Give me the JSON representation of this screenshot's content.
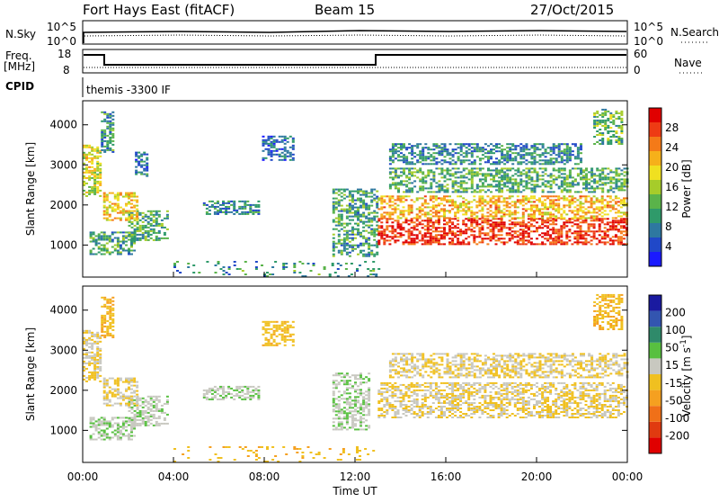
{
  "header": {
    "station": "Fort Hays East (fitACF)",
    "beam": "Beam 15",
    "date": "27/Oct/2015"
  },
  "top_panels": {
    "nsky_label": "N.Sky",
    "nsky_ticks": [
      "10^5",
      "10^0"
    ],
    "nsearch_label": "N.Search",
    "nsearch_ticks": [
      "10^5",
      "10^0"
    ],
    "freq_label_1": "Freq.",
    "freq_label_2": "[MHz]",
    "freq_ticks": [
      "18",
      "8"
    ],
    "nave_label": "Nave",
    "nave_ticks": [
      "60",
      "0"
    ],
    "cpid_label": "CPID",
    "cpid_text": "themis -3300 IF"
  },
  "colorbars": {
    "power": {
      "label": "Power [dB]",
      "ticks": [
        "28",
        "24",
        "20",
        "16",
        "12",
        "8",
        "4"
      ],
      "colors": [
        "#1a1aff",
        "#2048c8",
        "#2e78a0",
        "#2f9a6a",
        "#5ab34a",
        "#a6cc2a",
        "#f0e020",
        "#f6b01a",
        "#f47a18",
        "#ee3b14",
        "#e00000"
      ]
    },
    "velocity": {
      "label_main": "Velocity [m s",
      "label_sup": "-1",
      "label_end": "]",
      "ticks": [
        "200",
        "100",
        "50",
        "15",
        "-15",
        "-50",
        "-100",
        "-200"
      ],
      "colors": [
        "#1a1aa0",
        "#3355b0",
        "#2f8a6a",
        "#58c040",
        "#c8c8c0",
        "#f0c020",
        "#f5a020",
        "#f07018",
        "#e03a10",
        "#e00000"
      ]
    }
  },
  "chart_data": [
    {
      "type": "heatmap",
      "name": "Power",
      "ylabel": "Slant Range [km]",
      "yticks": [
        1000,
        2000,
        3000,
        4000
      ],
      "ylim": [
        200,
        4600
      ],
      "xlim_hours": [
        0,
        24
      ],
      "value_unit": "dB",
      "value_range": [
        0,
        30
      ],
      "regions": [
        {
          "t0": 0.3,
          "t1": 2.3,
          "r0": 750,
          "r1": 1300,
          "v": 10
        },
        {
          "t0": 2.0,
          "t1": 3.8,
          "r0": 1100,
          "r1": 1850,
          "v": 11
        },
        {
          "t0": 0.9,
          "t1": 2.4,
          "r0": 1600,
          "r1": 2300,
          "v": 19
        },
        {
          "t0": 0.0,
          "t1": 0.8,
          "r0": 2200,
          "r1": 3500,
          "v": 17
        },
        {
          "t0": 0.8,
          "t1": 1.4,
          "r0": 3300,
          "r1": 4300,
          "v": 9
        },
        {
          "t0": 2.3,
          "t1": 2.8,
          "r0": 2700,
          "r1": 3300,
          "v": 7
        },
        {
          "t0": 5.3,
          "t1": 7.8,
          "r0": 1750,
          "r1": 2100,
          "v": 8
        },
        {
          "t0": 7.9,
          "t1": 9.3,
          "r0": 3100,
          "r1": 3700,
          "v": 6
        },
        {
          "t0": 11.0,
          "t1": 13.0,
          "r0": 700,
          "r1": 2400,
          "v": 10
        },
        {
          "t0": 13.0,
          "t1": 24.0,
          "r0": 1000,
          "r1": 1650,
          "v": 27
        },
        {
          "t0": 13.0,
          "t1": 24.0,
          "r0": 1650,
          "r1": 2200,
          "v": 20
        },
        {
          "t0": 13.5,
          "t1": 24.0,
          "r0": 2300,
          "r1": 2900,
          "v": 11
        },
        {
          "t0": 13.5,
          "t1": 22.0,
          "r0": 3000,
          "r1": 3500,
          "v": 8
        },
        {
          "t0": 22.5,
          "t1": 23.8,
          "r0": 3500,
          "r1": 4400,
          "v": 12
        },
        {
          "t0": 4.0,
          "t1": 13.0,
          "r0": 200,
          "r1": 600,
          "v": 9
        }
      ]
    },
    {
      "type": "heatmap",
      "name": "Velocity",
      "ylabel": "Slant Range [km]",
      "xlabel": "Time UT",
      "xticks": [
        "00:00",
        "04:00",
        "08:00",
        "12:00",
        "16:00",
        "20:00",
        "00:00"
      ],
      "yticks": [
        1000,
        2000,
        3000,
        4000
      ],
      "ylim": [
        200,
        4600
      ],
      "xlim_hours": [
        0,
        24
      ],
      "value_unit": "m s^-1",
      "value_range": [
        -250,
        250
      ],
      "regions": [
        {
          "t0": 0.3,
          "t1": 2.3,
          "r0": 750,
          "r1": 1300,
          "v": 40
        },
        {
          "t0": 2.0,
          "t1": 3.8,
          "r0": 1100,
          "r1": 1850,
          "v": 35
        },
        {
          "t0": 0.9,
          "t1": 2.4,
          "r0": 1600,
          "r1": 2300,
          "v": 0
        },
        {
          "t0": 0.0,
          "t1": 0.8,
          "r0": 2200,
          "r1": 3500,
          "v": 0
        },
        {
          "t0": 0.8,
          "t1": 1.4,
          "r0": 3300,
          "r1": 4300,
          "v": -40
        },
        {
          "t0": 5.3,
          "t1": 7.8,
          "r0": 1750,
          "r1": 2100,
          "v": 40
        },
        {
          "t0": 7.9,
          "t1": 9.3,
          "r0": 3100,
          "r1": 3700,
          "v": -30
        },
        {
          "t0": 11.0,
          "t1": 12.6,
          "r0": 1000,
          "r1": 2400,
          "v": 40
        },
        {
          "t0": 13.0,
          "t1": 24.0,
          "r0": 1300,
          "r1": 2200,
          "v": 0
        },
        {
          "t0": 13.5,
          "t1": 24.0,
          "r0": 2300,
          "r1": 2900,
          "v": 0
        },
        {
          "t0": 22.5,
          "t1": 23.8,
          "r0": 3500,
          "r1": 4400,
          "v": -40
        },
        {
          "t0": 4.0,
          "t1": 13.0,
          "r0": 200,
          "r1": 600,
          "v": -40
        }
      ]
    }
  ]
}
